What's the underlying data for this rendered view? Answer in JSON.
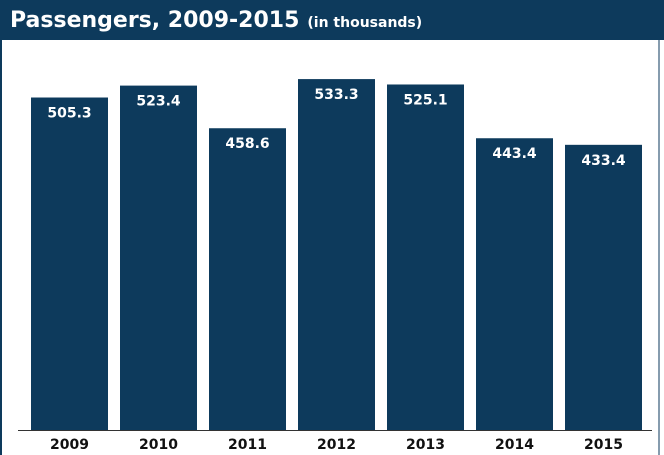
{
  "chart_data": {
    "type": "bar",
    "title": "Passengers, 2009-2015",
    "subtitle": "(in thousands)",
    "categories": [
      "2009",
      "2010",
      "2011",
      "2012",
      "2013",
      "2014",
      "2015"
    ],
    "values": [
      505.3,
      523.4,
      458.6,
      533.3,
      525.1,
      443.4,
      433.4
    ],
    "color": "#0d3a5c"
  }
}
